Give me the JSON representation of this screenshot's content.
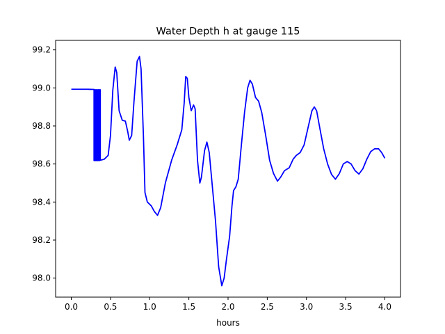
{
  "chart_data": {
    "type": "line",
    "title": "Water Depth h at gauge 115",
    "xlabel": "hours",
    "ylabel": "",
    "xlim": [
      -0.2,
      4.2
    ],
    "ylim": [
      97.9,
      99.25
    ],
    "xticks": [
      0.0,
      0.5,
      1.0,
      1.5,
      2.0,
      2.5,
      3.0,
      3.5,
      4.0
    ],
    "xtick_labels": [
      "0.0",
      "0.5",
      "1.0",
      "1.5",
      "2.0",
      "2.5",
      "3.0",
      "3.5",
      "4.0"
    ],
    "yticks": [
      98.0,
      98.2,
      98.4,
      98.6,
      98.8,
      99.0,
      99.2
    ],
    "ytick_labels": [
      "98.0",
      "98.2",
      "98.4",
      "98.6",
      "98.8",
      "99.0",
      "99.2"
    ],
    "grid": false,
    "series": [
      {
        "color": "#0000ff",
        "points": [
          [
            0.0,
            98.993
          ],
          [
            0.1,
            98.993
          ],
          [
            0.2,
            98.993
          ],
          [
            0.28,
            98.992
          ],
          [
            0.29,
            98.992
          ],
          [
            0.29,
            98.618
          ],
          [
            0.3,
            98.618
          ],
          [
            0.3,
            98.99
          ],
          [
            0.31,
            98.99
          ],
          [
            0.31,
            98.618
          ],
          [
            0.32,
            98.618
          ],
          [
            0.32,
            98.99
          ],
          [
            0.33,
            98.99
          ],
          [
            0.33,
            98.618
          ],
          [
            0.34,
            98.618
          ],
          [
            0.34,
            98.99
          ],
          [
            0.35,
            98.99
          ],
          [
            0.35,
            98.618
          ],
          [
            0.36,
            98.618
          ],
          [
            0.36,
            98.99
          ],
          [
            0.37,
            98.99
          ],
          [
            0.37,
            98.62
          ],
          [
            0.42,
            98.625
          ],
          [
            0.47,
            98.645
          ],
          [
            0.5,
            98.75
          ],
          [
            0.53,
            98.99
          ],
          [
            0.56,
            99.11
          ],
          [
            0.58,
            99.08
          ],
          [
            0.61,
            98.88
          ],
          [
            0.65,
            98.83
          ],
          [
            0.69,
            98.825
          ],
          [
            0.72,
            98.77
          ],
          [
            0.74,
            98.725
          ],
          [
            0.77,
            98.75
          ],
          [
            0.8,
            98.93
          ],
          [
            0.84,
            99.14
          ],
          [
            0.87,
            99.165
          ],
          [
            0.89,
            99.1
          ],
          [
            0.92,
            98.75
          ],
          [
            0.94,
            98.45
          ],
          [
            0.97,
            98.4
          ],
          [
            1.02,
            98.38
          ],
          [
            1.06,
            98.35
          ],
          [
            1.1,
            98.33
          ],
          [
            1.14,
            98.37
          ],
          [
            1.2,
            98.5
          ],
          [
            1.28,
            98.62
          ],
          [
            1.35,
            98.7
          ],
          [
            1.41,
            98.78
          ],
          [
            1.44,
            98.92
          ],
          [
            1.46,
            99.06
          ],
          [
            1.48,
            99.05
          ],
          [
            1.5,
            98.95
          ],
          [
            1.53,
            98.88
          ],
          [
            1.56,
            98.91
          ],
          [
            1.58,
            98.89
          ],
          [
            1.61,
            98.62
          ],
          [
            1.64,
            98.5
          ],
          [
            1.66,
            98.53
          ],
          [
            1.7,
            98.67
          ],
          [
            1.73,
            98.715
          ],
          [
            1.76,
            98.66
          ],
          [
            1.8,
            98.48
          ],
          [
            1.84,
            98.3
          ],
          [
            1.88,
            98.06
          ],
          [
            1.92,
            97.96
          ],
          [
            1.95,
            98.0
          ],
          [
            1.98,
            98.1
          ],
          [
            2.02,
            98.22
          ],
          [
            2.05,
            98.38
          ],
          [
            2.07,
            98.46
          ],
          [
            2.1,
            98.48
          ],
          [
            2.13,
            98.52
          ],
          [
            2.17,
            98.7
          ],
          [
            2.21,
            98.87
          ],
          [
            2.25,
            99.0
          ],
          [
            2.28,
            99.04
          ],
          [
            2.31,
            99.02
          ],
          [
            2.35,
            98.95
          ],
          [
            2.39,
            98.93
          ],
          [
            2.43,
            98.87
          ],
          [
            2.48,
            98.75
          ],
          [
            2.53,
            98.62
          ],
          [
            2.58,
            98.55
          ],
          [
            2.63,
            98.51
          ],
          [
            2.67,
            98.53
          ],
          [
            2.72,
            98.565
          ],
          [
            2.78,
            98.58
          ],
          [
            2.83,
            98.625
          ],
          [
            2.87,
            98.645
          ],
          [
            2.92,
            98.66
          ],
          [
            2.97,
            98.7
          ],
          [
            3.02,
            98.79
          ],
          [
            3.07,
            98.88
          ],
          [
            3.1,
            98.9
          ],
          [
            3.13,
            98.88
          ],
          [
            3.17,
            98.79
          ],
          [
            3.22,
            98.68
          ],
          [
            3.27,
            98.6
          ],
          [
            3.32,
            98.545
          ],
          [
            3.37,
            98.52
          ],
          [
            3.42,
            98.55
          ],
          [
            3.47,
            98.6
          ],
          [
            3.52,
            98.613
          ],
          [
            3.57,
            98.6
          ],
          [
            3.62,
            98.565
          ],
          [
            3.67,
            98.547
          ],
          [
            3.72,
            98.575
          ],
          [
            3.77,
            98.625
          ],
          [
            3.82,
            98.665
          ],
          [
            3.87,
            98.68
          ],
          [
            3.92,
            98.68
          ],
          [
            3.96,
            98.66
          ],
          [
            4.0,
            98.63
          ]
        ]
      }
    ]
  }
}
